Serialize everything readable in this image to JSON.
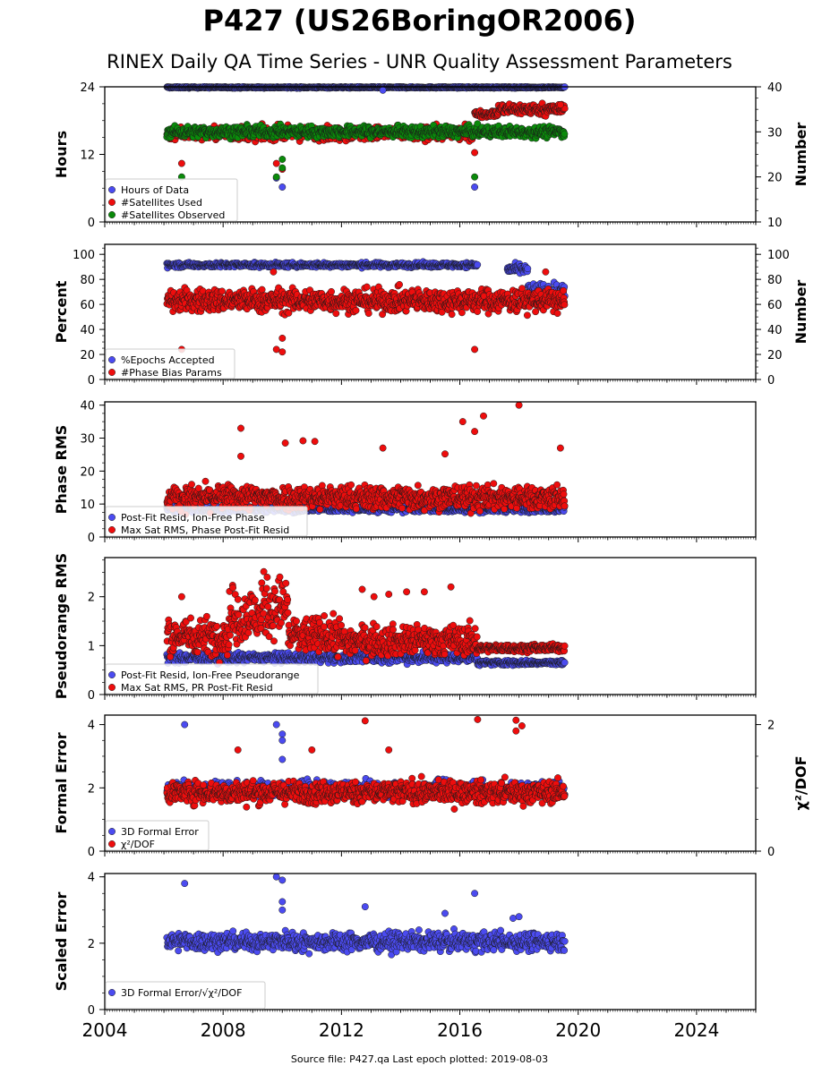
{
  "figure": {
    "title": "P427 (US26BoringOR2006)",
    "subtitle": "RINEX Daily QA Time Series - UNR Quality Assessment Parameters",
    "footer": "Source file: P427.qa Last epoch plotted: 2019-08-03",
    "colors": {
      "blue": "#4b4bf0",
      "red": "#ee0d0d",
      "green": "#0a8a0a",
      "axis": "#000000"
    },
    "x_tick_labels": [
      "2004",
      "2008",
      "2012",
      "2016",
      "2020",
      "2024"
    ]
  },
  "chart_data": [
    {
      "type": "scatter",
      "id": "hours",
      "xlim": [
        2004,
        2026
      ],
      "ylabel": "Hours",
      "ylim": [
        0,
        24
      ],
      "yticks": [
        0,
        12,
        24
      ],
      "ylabel_right": "Number",
      "ylim_right": [
        10,
        40
      ],
      "yticks_right": [
        10,
        20,
        30,
        40
      ],
      "legend_position": "lower-left",
      "series": [
        {
          "name": "Hours of Data",
          "color": "blue",
          "axis": "left",
          "segments": [
            [
              2006.1,
              2019.55,
              23.9,
              0.1
            ]
          ],
          "points": [
            [
              2009.8,
              7.8
            ],
            [
              2010.0,
              6.2
            ],
            [
              2016.5,
              6.2
            ],
            [
              2013.4,
              23.4
            ]
          ]
        },
        {
          "name": "#Satellites Used",
          "color": "red",
          "axis": "right",
          "segments": [
            [
              2006.1,
              2016.5,
              29.7,
              1.2
            ],
            [
              2016.5,
              2017.3,
              34.0,
              0.6
            ],
            [
              2017.3,
              2019.55,
              35.0,
              1.0
            ]
          ],
          "points": [
            [
              2006.6,
              23.0
            ],
            [
              2009.8,
              23.0
            ],
            [
              2010.0,
              21.7
            ],
            [
              2016.5,
              25.4
            ],
            [
              2009.7,
              30.6
            ],
            [
              2019.4,
              36.0
            ]
          ]
        },
        {
          "name": "#Satellites Observed",
          "color": "green",
          "axis": "right",
          "segments": [
            [
              2006.1,
              2019.55,
              30.0,
              1.0
            ]
          ],
          "points": [
            [
              2006.6,
              20.0
            ],
            [
              2009.8,
              20.0
            ],
            [
              2010.0,
              23.9
            ],
            [
              2010.0,
              22.0
            ],
            [
              2016.5,
              20.0
            ]
          ]
        }
      ]
    },
    {
      "type": "scatter",
      "id": "percent",
      "xlim": [
        2004,
        2026
      ],
      "ylabel": "Percent",
      "ylim": [
        0,
        108
      ],
      "yticks": [
        0,
        20,
        40,
        60,
        80,
        100
      ],
      "ylabel_right": "Number",
      "ylim_right": [
        0,
        108
      ],
      "yticks_right": [
        0,
        20,
        40,
        60,
        80,
        100
      ],
      "legend_position": "lower-left",
      "series": [
        {
          "name": "%Epochs Accepted",
          "color": "blue",
          "axis": "left",
          "segments": [
            [
              2006.1,
              2016.6,
              91.5,
              1.5
            ],
            [
              2017.6,
              2018.3,
              88.0,
              3.0
            ],
            [
              2018.3,
              2019.55,
              70.0,
              6.0
            ]
          ],
          "points": []
        },
        {
          "name": "#Phase Bias Params",
          "color": "red",
          "axis": "right",
          "segments": [
            [
              2006.1,
              2019.55,
              63.0,
              7.5
            ]
          ],
          "points": [
            [
              2006.6,
              24.0
            ],
            [
              2009.8,
              24.0
            ],
            [
              2010.0,
              22.0
            ],
            [
              2010.0,
              33.0
            ],
            [
              2016.5,
              24.0
            ],
            [
              2009.7,
              86.0
            ],
            [
              2018.9,
              86.0
            ]
          ]
        }
      ]
    },
    {
      "type": "scatter",
      "id": "phase-rms",
      "xlim": [
        2004,
        2026
      ],
      "ylabel": "Phase RMS",
      "ylim": [
        0,
        41
      ],
      "yticks": [
        0,
        10,
        20,
        30,
        40
      ],
      "legend_position": "lower-left",
      "series": [
        {
          "name": "Post-Fit Resid, Ion-Free Phase",
          "color": "blue",
          "axis": "left",
          "segments": [
            [
              2006.1,
              2019.55,
              8.5,
              0.8
            ]
          ],
          "points": []
        },
        {
          "name": "Max Sat RMS, Phase Post-Fit Resid",
          "color": "red",
          "axis": "left",
          "segments": [
            [
              2006.1,
              2019.55,
              12.0,
              3.0
            ]
          ],
          "points": [
            [
              2008.6,
              33.0
            ],
            [
              2016.1,
              35.0
            ],
            [
              2016.8,
              36.7
            ],
            [
              2018.0,
              40.0
            ],
            [
              2016.5,
              32.0
            ],
            [
              2019.4,
              27.0
            ],
            [
              2013.4,
              27.0
            ],
            [
              2010.1,
              28.5
            ],
            [
              2010.7,
              29.2
            ],
            [
              2011.1,
              29.0
            ],
            [
              2008.6,
              24.5
            ],
            [
              2015.5,
              25.2
            ]
          ]
        }
      ]
    },
    {
      "type": "scatter",
      "id": "pseudorange-rms",
      "xlim": [
        2004,
        2026
      ],
      "ylabel": "Pseudorange RMS",
      "ylim": [
        0,
        2.8
      ],
      "yticks": [
        0,
        1,
        2
      ],
      "legend_position": "lower-left",
      "series": [
        {
          "name": "Post-Fit Resid, Ion-Free Pseudorange",
          "color": "blue",
          "axis": "left",
          "segments": [
            [
              2006.1,
              2016.6,
              0.75,
              0.08
            ],
            [
              2016.6,
              2019.55,
              0.65,
              0.04
            ]
          ],
          "points": []
        },
        {
          "name": "Max Sat RMS, PR Post-Fit Resid",
          "color": "red",
          "axis": "left",
          "segments": [
            [
              2006.1,
              2008.2,
              1.2,
              0.3
            ],
            [
              2008.2,
              2009.3,
              1.6,
              0.5
            ],
            [
              2009.3,
              2010.2,
              1.8,
              0.5
            ],
            [
              2010.2,
              2012.0,
              1.2,
              0.3
            ],
            [
              2012.0,
              2016.6,
              1.1,
              0.25
            ],
            [
              2016.6,
              2019.55,
              0.95,
              0.06
            ]
          ],
          "points": [
            [
              2015.7,
              2.2
            ],
            [
              2012.7,
              2.15
            ],
            [
              2014.2,
              2.1
            ],
            [
              2014.8,
              2.1
            ],
            [
              2013.6,
              2.05
            ],
            [
              2006.6,
              2.0
            ],
            [
              2013.1,
              2.0
            ]
          ]
        }
      ]
    },
    {
      "type": "scatter",
      "id": "formal-error",
      "xlim": [
        2004,
        2026
      ],
      "ylabel": "Formal Error",
      "ylim": [
        0,
        4.3
      ],
      "yticks": [
        0,
        2,
        4
      ],
      "ylabel_right": "χ²/DOF",
      "ylim_right": [
        0,
        2.15
      ],
      "yticks_right": [
        0,
        2
      ],
      "legend_position": "lower-left",
      "series": [
        {
          "name": "3D Formal Error",
          "color": "blue",
          "axis": "left",
          "segments": [
            [
              2006.1,
              2019.55,
              1.95,
              0.2
            ]
          ],
          "points": [
            [
              2006.7,
              4.0
            ],
            [
              2009.8,
              4.0
            ],
            [
              2010.0,
              3.7
            ],
            [
              2010.0,
              3.5
            ],
            [
              2010.0,
              2.9
            ]
          ]
        },
        {
          "name": "χ²/DOF",
          "color": "red",
          "axis": "right",
          "segments": [
            [
              2006.1,
              2019.55,
              0.93,
              0.14
            ]
          ],
          "points": [
            [
              2012.8,
              2.06
            ],
            [
              2016.6,
              2.08
            ],
            [
              2017.9,
              2.07
            ],
            [
              2018.1,
              1.98
            ],
            [
              2017.9,
              1.9
            ],
            [
              2008.5,
              1.6
            ],
            [
              2011.0,
              1.6
            ],
            [
              2013.6,
              1.6
            ]
          ]
        }
      ]
    },
    {
      "type": "scatter",
      "id": "scaled-error",
      "xlim": [
        2004,
        2026
      ],
      "ylabel": "Scaled Error",
      "ylim": [
        0,
        4.1
      ],
      "yticks": [
        0,
        2,
        4
      ],
      "legend_position": "lower-left",
      "series": [
        {
          "name": "3D Formal Error/√χ²/DOF",
          "color": "blue",
          "axis": "left",
          "segments": [
            [
              2006.1,
              2019.55,
              2.05,
              0.22
            ]
          ],
          "points": [
            [
              2006.7,
              3.8
            ],
            [
              2009.8,
              4.0
            ],
            [
              2010.0,
              3.9
            ],
            [
              2010.0,
              3.25
            ],
            [
              2010.0,
              3.0
            ],
            [
              2016.5,
              3.5
            ],
            [
              2012.8,
              3.1
            ],
            [
              2015.5,
              2.9
            ],
            [
              2017.8,
              2.75
            ],
            [
              2018.0,
              2.8
            ]
          ]
        }
      ]
    }
  ]
}
